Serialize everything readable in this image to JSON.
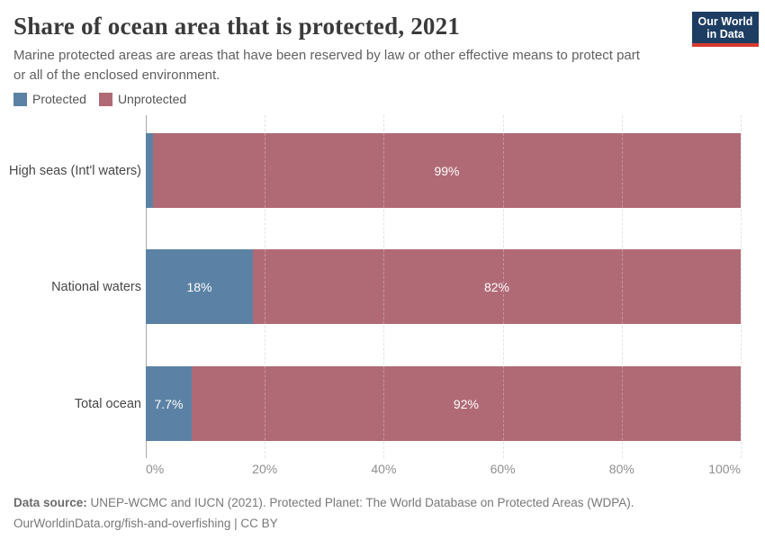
{
  "header": {
    "title": "Share of ocean area that is protected, 2021",
    "subtitle": "Marine protected areas are areas that have been reserved by law or other effective means to protect part or all of the enclosed environment.",
    "logo": {
      "line1": "Our World",
      "line2": "in Data",
      "bg_color": "#1d3d63",
      "accent_color": "#d8392f"
    }
  },
  "legend": [
    {
      "label": "Protected",
      "color": "#5b82a4"
    },
    {
      "label": "Unprotected",
      "color": "#b06a76"
    }
  ],
  "chart_data": {
    "type": "bar",
    "orientation": "horizontal",
    "stacked": true,
    "title": "Share of ocean area that is protected, 2021",
    "categories": [
      "High seas (Int'l waters)",
      "National waters",
      "Total ocean"
    ],
    "series": [
      {
        "name": "Protected",
        "color": "#5b82a4",
        "values": [
          1.2,
          18,
          7.7
        ],
        "labels": [
          "",
          "18%",
          "7.7%"
        ]
      },
      {
        "name": "Unprotected",
        "color": "#b06a76",
        "values": [
          98.8,
          82,
          92.3
        ],
        "labels": [
          "99%",
          "82%",
          "92%"
        ]
      }
    ],
    "x_ticks": [
      "0%",
      "20%",
      "40%",
      "60%",
      "80%",
      "100%"
    ],
    "x_range": [
      0,
      100
    ],
    "grid": "vertical dashed, solid axis at 0%",
    "legend_position": "top-left"
  },
  "footer": {
    "source_label": "Data source:",
    "source_text": " UNEP-WCMC and IUCN (2021). Protected Planet: The World Database on Protected Areas (WDPA).",
    "note": "OurWorldinData.org/fish-and-overfishing | CC BY"
  }
}
